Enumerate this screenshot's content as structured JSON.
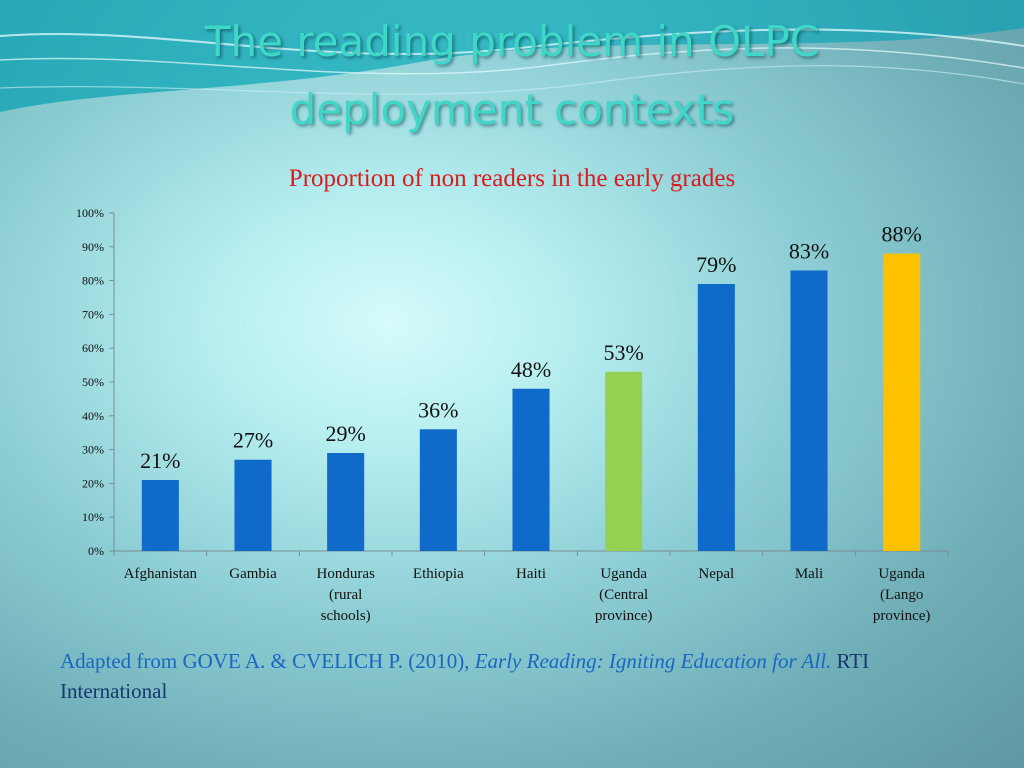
{
  "slide": {
    "title_line_1": "The reading problem in OLPC",
    "title_line_2": "deployment contexts"
  },
  "colors": {
    "title": "#3fd8c8",
    "chart_title": "#d81c1c",
    "bar_default": "#0f6ac9",
    "bar_uganda_central": "#93d152",
    "bar_uganda_lango": "#fec100",
    "source_text": "#1a66c4"
  },
  "chart_data": {
    "type": "bar",
    "title": "Proportion of non readers in the early grades",
    "categories": [
      [
        "Afghanistan"
      ],
      [
        "Gambia"
      ],
      [
        "Honduras",
        "(rural",
        "schools)"
      ],
      [
        "Ethiopia"
      ],
      [
        "Haiti"
      ],
      [
        "Uganda",
        "(Central",
        "province)"
      ],
      [
        "Nepal"
      ],
      [
        "Mali"
      ],
      [
        "Uganda",
        "(Lango",
        "province)"
      ]
    ],
    "values": [
      21,
      27,
      29,
      36,
      48,
      53,
      79,
      83,
      88
    ],
    "data_labels": [
      "21%",
      "27%",
      "29%",
      "36%",
      "48%",
      "53%",
      "79%",
      "83%",
      "88%"
    ],
    "bar_colors": [
      "#0f6ac9",
      "#0f6ac9",
      "#0f6ac9",
      "#0f6ac9",
      "#0f6ac9",
      "#93d152",
      "#0f6ac9",
      "#0f6ac9",
      "#fec100"
    ],
    "y_ticks": [
      0,
      10,
      20,
      30,
      40,
      50,
      60,
      70,
      80,
      90,
      100
    ],
    "y_tick_labels": [
      "0%",
      "10%",
      "20%",
      "30%",
      "40%",
      "50%",
      "60%",
      "70%",
      "80%",
      "90%",
      "100%"
    ],
    "ylim": [
      0,
      100
    ],
    "xlabel": "",
    "ylabel": "",
    "grid": false,
    "legend": "none"
  },
  "source": {
    "prefix": "Adapted from GOVE A. & CVELICH P. (2010), ",
    "italic": "Early Reading: Igniting Education for All.",
    "suffix": " RTI International"
  }
}
